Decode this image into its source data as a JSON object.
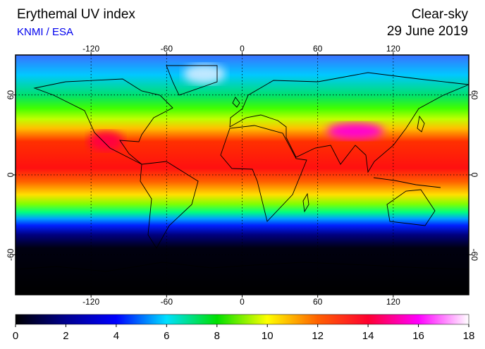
{
  "header": {
    "title": "Erythemal UV index",
    "subtitle": "KNMI / ESA",
    "mode": "Clear-sky",
    "date": "29 June 2019"
  },
  "map": {
    "xlim": [
      -180,
      180
    ],
    "ylim": [
      -90,
      90
    ],
    "xticks": [
      -120,
      -60,
      0,
      60,
      120
    ],
    "yticks": [
      60,
      0,
      -60
    ],
    "grid": true
  },
  "colorbar": {
    "lim": [
      0,
      18
    ],
    "ticks": [
      0,
      2,
      4,
      6,
      8,
      10,
      12,
      14,
      16,
      18
    ],
    "colors": [
      "#000000",
      "#000090",
      "#0000ff",
      "#00e0ff",
      "#00e000",
      "#ffff00",
      "#ff6000",
      "#ff0030",
      "#ff00ff",
      "#ffffff"
    ]
  }
}
